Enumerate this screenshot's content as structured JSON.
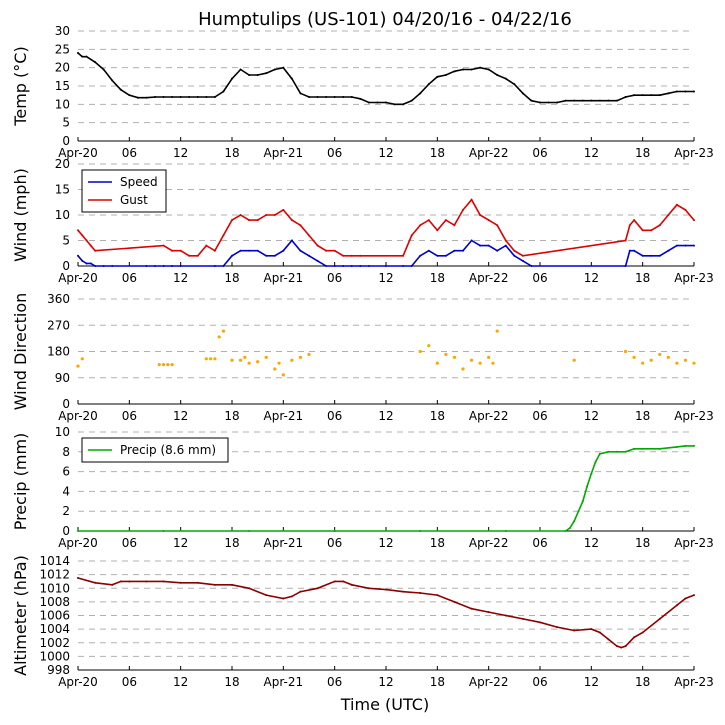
{
  "title": "Humptulips (US-101) 04/20/16 - 04/22/16",
  "x_axis": {
    "label": "Time (UTC)",
    "tick_labels": [
      "Apr-20",
      "06",
      "12",
      "18",
      "Apr-21",
      "06",
      "12",
      "18",
      "Apr-22",
      "06",
      "12",
      "18",
      "Apr-23"
    ],
    "range_hours": [
      0,
      72
    ]
  },
  "colors": {
    "temp": "#000000",
    "speed": "#0000cc",
    "gust": "#dd0000",
    "direction": "#ffa500",
    "precip": "#00aa00",
    "altimeter": "#8b0000",
    "grid": "#b0b0b0"
  },
  "chart_data": [
    {
      "type": "line",
      "title": "Humptulips (US-101) 04/20/16 - 04/22/16",
      "ylabel": "Temp (°C)",
      "ylim": [
        0,
        30
      ],
      "yticks": [
        0,
        5,
        10,
        15,
        20,
        25,
        30
      ],
      "series": [
        {
          "name": "Temp",
          "color": "#000000",
          "x": [
            0,
            0.5,
            1,
            2,
            3,
            4,
            5,
            6,
            7,
            8,
            9,
            10,
            11,
            12,
            13,
            14,
            15,
            16,
            17,
            18,
            19,
            20,
            21,
            22,
            23,
            24,
            25,
            26,
            27,
            28,
            29,
            30,
            31,
            32,
            33,
            34,
            35,
            36,
            37,
            38,
            39,
            40,
            41,
            42,
            43,
            44,
            45,
            46,
            47,
            48,
            49,
            50,
            51,
            52,
            53,
            54,
            55,
            56,
            57,
            58,
            59,
            60,
            61,
            62,
            63,
            64,
            65,
            66,
            67,
            68,
            69,
            70,
            71,
            72
          ],
          "y": [
            24,
            23,
            23,
            21.5,
            19.5,
            16.5,
            14,
            12.5,
            11.8,
            11.8,
            12,
            12,
            12,
            12,
            12,
            12,
            12,
            12,
            13.5,
            17,
            19.5,
            18,
            18,
            18.5,
            19.5,
            20,
            17,
            13,
            12,
            12,
            12,
            12,
            12,
            12,
            11.5,
            10.5,
            10.5,
            10.5,
            10,
            10,
            11,
            13,
            15.5,
            17.5,
            18,
            19,
            19.5,
            19.5,
            20,
            19.5,
            18,
            17,
            15.5,
            13,
            11,
            10.5,
            10.5,
            10.5,
            11,
            11,
            11,
            11,
            11,
            11,
            11,
            12,
            12.5,
            12.5,
            12.5,
            12.5,
            13,
            13.5,
            13.5,
            13.5
          ]
        }
      ]
    },
    {
      "type": "line",
      "ylabel": "Wind (mph)",
      "ylim": [
        0,
        20
      ],
      "yticks": [
        0,
        5,
        10,
        15,
        20
      ],
      "legend": [
        "Speed",
        "Gust"
      ],
      "series": [
        {
          "name": "Speed",
          "color": "#0000cc",
          "x": [
            0,
            0.5,
            1,
            1.5,
            2,
            3,
            4,
            8,
            9,
            10,
            11,
            12,
            16,
            17,
            18,
            19,
            20,
            21,
            22,
            23,
            24,
            25,
            26,
            27,
            28,
            29,
            30,
            31,
            32,
            33,
            34,
            36,
            38,
            39,
            40,
            41,
            42,
            43,
            44,
            45,
            46,
            47,
            48,
            49,
            50,
            51,
            52,
            53,
            64,
            64.5,
            65,
            66,
            67,
            68,
            69,
            70,
            71,
            72
          ],
          "y": [
            2,
            1,
            0.5,
            0.5,
            0,
            0,
            0,
            0,
            0,
            0,
            0,
            0,
            0,
            0,
            2,
            3,
            3,
            3,
            2,
            2,
            3,
            5,
            3,
            2,
            1,
            0,
            0,
            0,
            0,
            0,
            0,
            0,
            0,
            0,
            2,
            3,
            2,
            2,
            3,
            3,
            5,
            4,
            4,
            3,
            4,
            2,
            1,
            0,
            0,
            3,
            3,
            2,
            2,
            2,
            3,
            4,
            4,
            4
          ]
        },
        {
          "name": "Gust",
          "color": "#dd0000",
          "x": [
            0,
            0.5,
            1,
            1.5,
            2,
            10,
            11,
            12,
            13,
            14,
            15,
            16,
            17,
            18,
            19,
            20,
            21,
            22,
            23,
            24,
            25,
            26,
            27,
            28,
            29,
            30,
            31,
            32,
            33,
            38,
            39,
            40,
            41,
            42,
            43,
            44,
            45,
            46,
            47,
            48,
            49,
            50,
            51,
            52,
            64,
            64.5,
            65,
            66,
            67,
            68,
            69,
            70,
            71,
            72
          ],
          "y": [
            7,
            6,
            5,
            4,
            3,
            4,
            3,
            3,
            2,
            2,
            4,
            3,
            6,
            9,
            10,
            9,
            9,
            10,
            10,
            11,
            9,
            8,
            6,
            4,
            3,
            3,
            2,
            2,
            2,
            2,
            6,
            8,
            9,
            7,
            9,
            8,
            11,
            13,
            10,
            9,
            8,
            5,
            3,
            2,
            5,
            8,
            9,
            7,
            7,
            8,
            10,
            12,
            11,
            9
          ]
        }
      ]
    },
    {
      "type": "scatter",
      "ylabel": "Wind Direction",
      "ylim": [
        0,
        360
      ],
      "yticks": [
        0,
        90,
        180,
        270,
        360
      ],
      "series": [
        {
          "name": "Direction",
          "color": "#ffa500",
          "x": [
            0,
            0.5,
            9.5,
            10,
            10.5,
            11,
            15,
            15.5,
            16,
            16.5,
            17,
            18,
            19,
            19.5,
            20,
            21,
            22,
            23,
            23.5,
            24,
            25,
            26,
            27,
            40,
            41,
            42,
            43,
            44,
            45,
            46,
            47,
            48,
            48.5,
            49,
            58,
            64,
            65,
            66,
            67,
            68,
            69,
            70,
            71,
            72
          ],
          "y": [
            130,
            155,
            135,
            135,
            135,
            135,
            155,
            155,
            155,
            230,
            250,
            150,
            150,
            160,
            140,
            145,
            160,
            120,
            140,
            100,
            150,
            160,
            170,
            180,
            200,
            140,
            170,
            160,
            120,
            150,
            140,
            160,
            140,
            250,
            150,
            180,
            160,
            140,
            150,
            170,
            160,
            140,
            150,
            140
          ]
        }
      ]
    },
    {
      "type": "line",
      "ylabel": "Precip (mm)",
      "ylim": [
        0,
        10
      ],
      "yticks": [
        0,
        2,
        4,
        6,
        8,
        10
      ],
      "legend": [
        "Precip (8.6 mm)"
      ],
      "series": [
        {
          "name": "Precip (8.6 mm)",
          "color": "#00aa00",
          "x": [
            0,
            10,
            20,
            30,
            40,
            50,
            57,
            57.5,
            58,
            58.5,
            59,
            59.5,
            60,
            60.5,
            61,
            62,
            63,
            64,
            65,
            66,
            68,
            70,
            71,
            72
          ],
          "y": [
            0,
            0,
            0,
            0,
            0,
            0,
            0,
            0.3,
            1,
            2,
            3,
            4.5,
            5.8,
            7,
            7.8,
            8,
            8,
            8,
            8.3,
            8.3,
            8.3,
            8.5,
            8.6,
            8.6
          ]
        }
      ]
    },
    {
      "type": "line",
      "ylabel": "Altimeter (hPa)",
      "xlabel": "Time (UTC)",
      "ylim": [
        998,
        1014
      ],
      "yticks": [
        998,
        1000,
        1002,
        1004,
        1006,
        1008,
        1010,
        1012,
        1014
      ],
      "series": [
        {
          "name": "Altimeter",
          "color": "#8b0000",
          "x": [
            0,
            2,
            4,
            5,
            6,
            8,
            10,
            12,
            14,
            16,
            18,
            20,
            22,
            24,
            25,
            26,
            28,
            30,
            31,
            32,
            34,
            36,
            38,
            40,
            42,
            44,
            46,
            48,
            50,
            52,
            54,
            56,
            58,
            60,
            61,
            62,
            63,
            63.5,
            64,
            65,
            66,
            68,
            70,
            71,
            72
          ],
          "y": [
            1011.5,
            1010.8,
            1010.5,
            1011,
            1011,
            1011,
            1011,
            1010.8,
            1010.8,
            1010.5,
            1010.5,
            1010,
            1009,
            1008.5,
            1008.8,
            1009.5,
            1010,
            1011,
            1011,
            1010.5,
            1010,
            1009.8,
            1009.5,
            1009.3,
            1009,
            1008,
            1007,
            1006.5,
            1006,
            1005.5,
            1005,
            1004.3,
            1003.8,
            1004,
            1003.5,
            1002.5,
            1001.5,
            1001.3,
            1001.5,
            1002.8,
            1003.5,
            1005.5,
            1007.5,
            1008.5,
            1009
          ]
        }
      ]
    }
  ]
}
